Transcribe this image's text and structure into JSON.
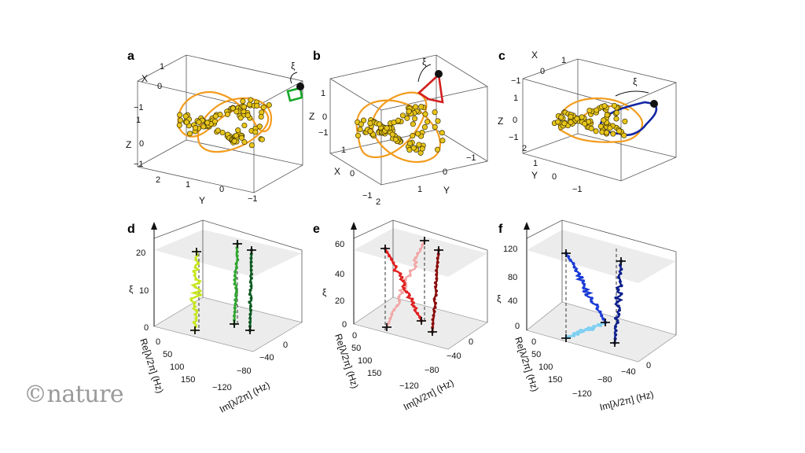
{
  "watermark": "©nature",
  "panels_top": [
    {
      "label": "a",
      "loop_color": "#16a827",
      "tick_x_axis": [
        "X",
        "1",
        "0",
        "−1"
      ],
      "tick_z": [
        "1",
        "0",
        "−1"
      ],
      "tick_y": [
        "2",
        "1",
        "0",
        "−1"
      ],
      "axis_x": "X",
      "axis_y": "Y",
      "axis_z": "Z",
      "xi": "ξ"
    },
    {
      "label": "b",
      "loop_color": "#d41f1f",
      "tick_z": [
        "1",
        "0",
        "−1"
      ],
      "tick_x": [
        "1",
        "0",
        "−1"
      ],
      "tick_y": [
        "1",
        "0",
        "−1"
      ],
      "tick_y2": [
        "2"
      ],
      "axis_x": "X",
      "axis_y": "Y",
      "axis_z": "Z",
      "xi": "ξ"
    },
    {
      "label": "c",
      "loop_color": "#1226a3",
      "tick_x": [
        "1",
        "0",
        "−1"
      ],
      "tick_z": [
        "1",
        "0",
        "−1"
      ],
      "tick_y": [
        "2",
        "1",
        "0",
        "−1"
      ],
      "axis_x": "X",
      "axis_y": "Y",
      "axis_z": "Z",
      "xi": "ξ"
    }
  ],
  "panels_bottom": [
    {
      "label": "d",
      "z_ticks": [
        "20",
        "10",
        "0"
      ],
      "re_ticks": [
        "0",
        "50",
        "100",
        "150"
      ],
      "im_ticks": [
        "0",
        "−40",
        "−80",
        "−120"
      ],
      "z_label": "ξ",
      "re_label": "Re[λ/2π] (Hz)",
      "im_label": "Im[λ/2π] (Hz)",
      "series_colors": [
        "#c8e61e",
        "#2fa62f",
        "#0d5a22"
      ]
    },
    {
      "label": "e",
      "z_ticks": [
        "60",
        "40",
        "20",
        "0"
      ],
      "re_ticks": [
        "0",
        "50",
        "100",
        "150"
      ],
      "im_ticks": [
        "0",
        "−40",
        "−80",
        "−120"
      ],
      "z_label": "ξ",
      "re_label": "Re[λ/2π] (Hz)",
      "im_label": "Im[λ/2π] (Hz)",
      "series_colors": [
        "#f2a7a7",
        "#e02020",
        "#8a0c0c"
      ]
    },
    {
      "label": "f",
      "z_ticks": [
        "120",
        "80",
        "40",
        "0"
      ],
      "re_ticks": [
        "0",
        "50",
        "100",
        "150"
      ],
      "im_ticks": [
        "0",
        "−40",
        "−80",
        "−120"
      ],
      "z_label": "ξ",
      "re_label": "Re[λ/2π] (Hz)",
      "im_label": "Im[λ/2π] (Hz)",
      "series_colors": [
        "#7fd0f2",
        "#1a3ad6",
        "#0e1f8c"
      ]
    }
  ],
  "colors": {
    "torus_line": "#f39c1e",
    "points": "#e8c51a",
    "point_edge": "#3a2f00",
    "ball": "#111111"
  }
}
